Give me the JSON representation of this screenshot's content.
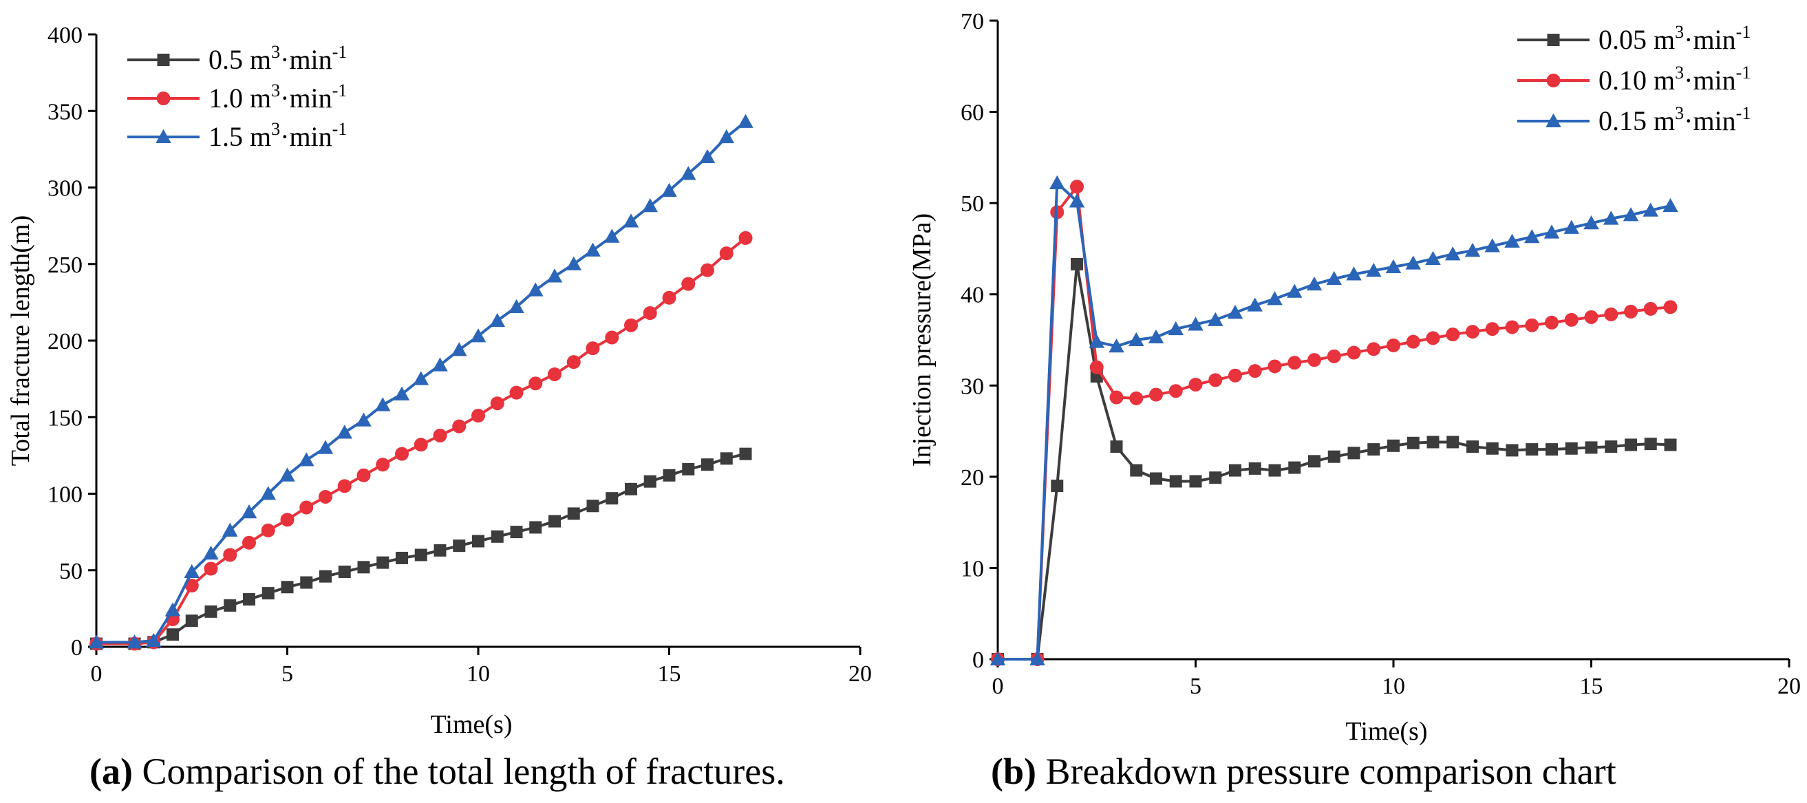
{
  "chart_data": [
    {
      "type": "line",
      "panel": "a",
      "caption_label": "(a)",
      "caption_text": "Comparison of the total length of fractures.",
      "xlabel": "Time(s)",
      "ylabel": "Total fracture length(m)",
      "xlim": [
        0,
        20
      ],
      "ylim": [
        0,
        400
      ],
      "xticks": [
        0,
        5,
        10,
        15,
        20
      ],
      "yticks": [
        0,
        50,
        100,
        150,
        200,
        250,
        300,
        350,
        400
      ],
      "legend_position": "top-left",
      "series": [
        {
          "name": "0.5 m3·min-1",
          "label_base": "0.5 m",
          "label_exp": "3",
          "label_mid": "·min",
          "label_exp2": "-1",
          "color": "#3c3c3c",
          "marker": "square",
          "x": [
            0,
            1,
            1.5,
            2,
            2.5,
            3,
            3.5,
            4,
            4.5,
            5,
            5.5,
            6,
            6.5,
            7,
            7.5,
            8,
            8.5,
            9,
            9.5,
            10,
            10.5,
            11,
            11.5,
            12,
            12.5,
            13,
            13.5,
            14,
            14.5,
            15,
            15.5,
            16,
            16.5,
            17
          ],
          "y": [
            2,
            2,
            3,
            8,
            17,
            23,
            27,
            31,
            35,
            39,
            42,
            46,
            49,
            52,
            55,
            58,
            60,
            63,
            66,
            69,
            72,
            75,
            78,
            82,
            87,
            92,
            97,
            103,
            108,
            112,
            116,
            119,
            123,
            126
          ]
        },
        {
          "name": "1.0 m3·min-1",
          "label_base": "1.0 m",
          "label_exp": "3",
          "label_mid": "·min",
          "label_exp2": "-1",
          "color": "#e8323c",
          "marker": "circle",
          "x": [
            0,
            1,
            1.5,
            2,
            2.5,
            3,
            3.5,
            4,
            4.5,
            5,
            5.5,
            6,
            6.5,
            7,
            7.5,
            8,
            8.5,
            9,
            9.5,
            10,
            10.5,
            11,
            11.5,
            12,
            12.5,
            13,
            13.5,
            14,
            14.5,
            15,
            15.5,
            16,
            16.5,
            17
          ],
          "y": [
            2,
            2,
            3,
            18,
            40,
            51,
            60,
            68,
            76,
            83,
            91,
            98,
            105,
            112,
            119,
            126,
            132,
            138,
            144,
            151,
            159,
            166,
            172,
            178,
            186,
            195,
            202,
            210,
            218,
            228,
            237,
            246,
            257,
            267
          ]
        },
        {
          "name": "1.5 m3·min-1",
          "label_base": "1.5 m",
          "label_exp": "3",
          "label_mid": "·min",
          "label_exp2": "-1",
          "color": "#2a65b8",
          "marker": "triangle",
          "x": [
            0,
            1,
            1.5,
            2,
            2.5,
            3,
            3.5,
            4,
            4.5,
            5,
            5.5,
            6,
            6.5,
            7,
            7.5,
            8,
            8.5,
            9,
            9.5,
            10,
            10.5,
            11,
            11.5,
            12,
            12.5,
            13,
            13.5,
            14,
            14.5,
            15,
            15.5,
            16,
            16.5,
            17
          ],
          "y": [
            3,
            3,
            4,
            24,
            49,
            61,
            76,
            88,
            100,
            112,
            122,
            130,
            140,
            148,
            158,
            165,
            175,
            184,
            194,
            203,
            213,
            222,
            233,
            242,
            250,
            259,
            268,
            278,
            288,
            298,
            309,
            320,
            333,
            343
          ]
        }
      ]
    },
    {
      "type": "line",
      "panel": "b",
      "caption_label": "(b)",
      "caption_text": "Breakdown pressure comparison chart",
      "xlabel": "Time(s)",
      "ylabel": "Injection pressure(MPa)",
      "xlim": [
        0,
        20
      ],
      "ylim": [
        0,
        70
      ],
      "xticks": [
        0,
        5,
        10,
        15,
        20
      ],
      "yticks": [
        0,
        10,
        20,
        30,
        40,
        50,
        60,
        70
      ],
      "legend_position": "top-right",
      "series": [
        {
          "name": "0.05 m3·min-1",
          "label_base": "0.05 m",
          "label_exp": "3",
          "label_mid": "·min",
          "label_exp2": "-1",
          "color": "#3c3c3c",
          "marker": "square",
          "x": [
            0,
            1,
            1.5,
            2,
            2.5,
            3,
            3.5,
            4,
            4.5,
            5,
            5.5,
            6,
            6.5,
            7,
            7.5,
            8,
            8.5,
            9,
            9.5,
            10,
            10.5,
            11,
            11.5,
            12,
            12.5,
            13,
            13.5,
            14,
            14.5,
            15,
            15.5,
            16,
            16.5,
            17
          ],
          "y": [
            0,
            0,
            19,
            43.3,
            31,
            23.3,
            20.7,
            19.8,
            19.5,
            19.5,
            19.9,
            20.7,
            20.9,
            20.7,
            21,
            21.7,
            22.2,
            22.6,
            23,
            23.4,
            23.7,
            23.8,
            23.8,
            23.3,
            23.1,
            22.9,
            23,
            23,
            23.1,
            23.2,
            23.3,
            23.5,
            23.6,
            23.5
          ]
        },
        {
          "name": "0.10 m3·min-1",
          "label_base": "0.10 m",
          "label_exp": "3",
          "label_mid": "·min",
          "label_exp2": "-1",
          "color": "#e8323c",
          "marker": "circle",
          "x": [
            0,
            1,
            1.5,
            2,
            2.5,
            3,
            3.5,
            4,
            4.5,
            5,
            5.5,
            6,
            6.5,
            7,
            7.5,
            8,
            8.5,
            9,
            9.5,
            10,
            10.5,
            11,
            11.5,
            12,
            12.5,
            13,
            13.5,
            14,
            14.5,
            15,
            15.5,
            16,
            16.5,
            17
          ],
          "y": [
            0,
            0,
            49,
            51.8,
            32,
            28.7,
            28.6,
            29,
            29.4,
            30.1,
            30.6,
            31.1,
            31.6,
            32.1,
            32.5,
            32.8,
            33.2,
            33.6,
            34,
            34.4,
            34.8,
            35.2,
            35.6,
            35.9,
            36.2,
            36.4,
            36.6,
            36.9,
            37.2,
            37.5,
            37.8,
            38.1,
            38.4,
            38.6
          ]
        },
        {
          "name": "0.15 m3·min-1",
          "label_base": "0.15 m",
          "label_exp": "3",
          "label_mid": "·min",
          "label_exp2": "-1",
          "color": "#2a65b8",
          "marker": "triangle",
          "x": [
            0,
            1,
            1.5,
            2,
            2.5,
            3,
            3.5,
            4,
            4.5,
            5,
            5.5,
            6,
            6.5,
            7,
            7.5,
            8,
            8.5,
            9,
            9.5,
            10,
            10.5,
            11,
            11.5,
            12,
            12.5,
            13,
            13.5,
            14,
            14.5,
            15,
            15.5,
            16,
            16.5,
            17
          ],
          "y": [
            0,
            0,
            52.2,
            50.2,
            34.8,
            34.3,
            35,
            35.3,
            36.2,
            36.7,
            37.2,
            38,
            38.8,
            39.5,
            40.3,
            41.1,
            41.7,
            42.2,
            42.6,
            43,
            43.4,
            43.9,
            44.4,
            44.8,
            45.3,
            45.8,
            46.3,
            46.8,
            47.3,
            47.8,
            48.3,
            48.7,
            49.2,
            49.7
          ]
        }
      ]
    }
  ]
}
